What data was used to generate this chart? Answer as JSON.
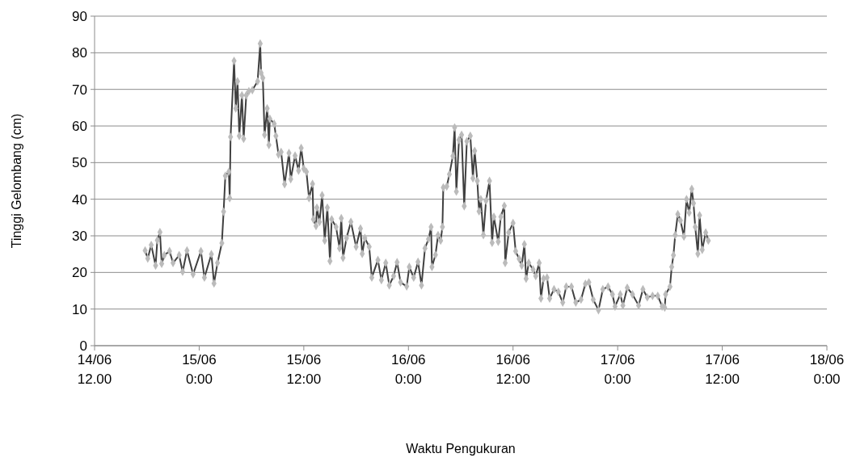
{
  "chart_data": {
    "type": "line",
    "xlabel": "Waktu Pengukuran",
    "ylabel": "Tinggi Gelombang (cm)",
    "grid": "y",
    "marker": "diamond",
    "line_style": "solid",
    "xlim": [
      "--06-14T12:00",
      "--06-18T00:00"
    ],
    "xticks": [
      {
        "value": "--06-14T12:00",
        "label": "14/06\n12.00"
      },
      {
        "value": "--06-15T00:00",
        "label": "15/06\n0:00"
      },
      {
        "value": "--06-15T12:00",
        "label": "15/06\n12:00"
      },
      {
        "value": "--06-16T00:00",
        "label": "16/06\n0:00"
      },
      {
        "value": "--06-16T12:00",
        "label": "16/06\n12:00"
      },
      {
        "value": "--06-17T00:00",
        "label": "17/06\n0:00"
      },
      {
        "value": "--06-17T12:00",
        "label": "17/06\n12:00"
      },
      {
        "value": "--06-18T00:00",
        "label": "18/06\n0:00"
      }
    ],
    "ylim": [
      0,
      90
    ],
    "yticks": [
      0,
      10,
      20,
      30,
      40,
      50,
      60,
      70,
      80,
      90
    ],
    "series": [
      {
        "color": "#404040",
        "x": [
          "--06-14T17:48",
          "--06-14T18:06",
          "--06-14T18:30",
          "--06-14T19:00",
          "--06-14T19:12",
          "--06-14T19:30",
          "--06-14T19:42",
          "--06-14T20:00",
          "--06-14T20:36",
          "--06-14T21:00",
          "--06-14T21:42",
          "--06-14T22:06",
          "--06-14T22:36",
          "--06-14T23:18",
          "--06-15T00:12",
          "--06-15T00:36",
          "--06-15T01:24",
          "--06-15T01:42",
          "--06-15T02:06",
          "--06-15T02:36",
          "--06-15T02:48",
          "--06-15T03:00",
          "--06-15T03:24",
          "--06-15T03:30",
          "--06-15T03:36",
          "--06-15T04:00",
          "--06-15T04:12",
          "--06-15T04:24",
          "--06-15T04:36",
          "--06-15T04:54",
          "--06-15T05:06",
          "--06-15T05:24",
          "--06-15T05:42",
          "--06-15T06:06",
          "--06-15T06:42",
          "--06-15T07:00",
          "--06-15T07:06",
          "--06-15T07:18",
          "--06-15T07:30",
          "--06-15T07:48",
          "--06-15T08:00",
          "--06-15T08:06",
          "--06-15T08:36",
          "--06-15T08:48",
          "--06-15T09:06",
          "--06-15T09:24",
          "--06-15T09:48",
          "--06-15T10:18",
          "--06-15T10:30",
          "--06-15T11:00",
          "--06-15T11:24",
          "--06-15T11:42",
          "--06-15T12:00",
          "--06-15T12:18",
          "--06-15T12:36",
          "--06-15T13:00",
          "--06-15T13:06",
          "--06-15T13:24",
          "--06-15T13:30",
          "--06-15T13:48",
          "--06-15T14:06",
          "--06-15T14:24",
          "--06-15T14:42",
          "--06-15T15:00",
          "--06-15T15:12",
          "--06-15T15:42",
          "--06-15T16:06",
          "--06-15T16:18",
          "--06-15T16:30",
          "--06-15T16:54",
          "--06-15T17:24",
          "--06-15T18:00",
          "--06-15T18:30",
          "--06-15T18:42",
          "--06-15T19:00",
          "--06-15T19:30",
          "--06-15T19:48",
          "--06-15T20:30",
          "--06-15T20:54",
          "--06-15T21:24",
          "--06-15T21:48",
          "--06-15T22:18",
          "--06-15T22:42",
          "--06-15T23:06",
          "--06-15T23:48",
          "--06-16T00:06",
          "--06-16T00:36",
          "--06-16T01:06",
          "--06-16T01:30",
          "--06-16T01:54",
          "--06-16T02:18",
          "--06-16T02:36",
          "--06-16T02:42",
          "--06-16T03:06",
          "--06-16T03:24",
          "--06-16T03:42",
          "--06-16T03:54",
          "--06-16T04:00",
          "--06-16T04:24",
          "--06-16T04:42",
          "--06-16T05:06",
          "--06-16T05:18",
          "--06-16T05:30",
          "--06-16T05:48",
          "--06-16T06:06",
          "--06-16T06:24",
          "--06-16T06:42",
          "--06-16T07:06",
          "--06-16T07:24",
          "--06-16T07:36",
          "--06-16T07:54",
          "--06-16T08:06",
          "--06-16T08:18",
          "--06-16T08:36",
          "--06-16T08:54",
          "--06-16T09:18",
          "--06-16T09:36",
          "--06-16T09:48",
          "--06-16T10:18",
          "--06-16T10:36",
          "--06-16T11:00",
          "--06-16T11:06",
          "--06-16T11:30",
          "--06-16T12:00",
          "--06-16T12:18",
          "--06-16T12:42",
          "--06-16T13:00",
          "--06-16T13:18",
          "--06-16T13:30",
          "--06-16T13:48",
          "--06-16T14:18",
          "--06-16T14:36",
          "--06-16T15:00",
          "--06-16T15:12",
          "--06-16T15:30",
          "--06-16T15:54",
          "--06-16T16:12",
          "--06-16T16:42",
          "--06-16T17:12",
          "--06-16T17:42",
          "--06-16T18:06",
          "--06-16T18:42",
          "--06-16T19:12",
          "--06-16T19:48",
          "--06-16T20:18",
          "--06-16T20:42",
          "--06-16T21:12",
          "--06-16T21:48",
          "--06-16T22:18",
          "--06-16T22:54",
          "--06-16T23:24",
          "--06-16T23:42",
          "--06-17T00:18",
          "--06-17T00:36",
          "--06-17T01:06",
          "--06-17T01:42",
          "--06-17T02:24",
          "--06-17T02:54",
          "--06-17T03:24",
          "--06-17T04:00",
          "--06-17T04:36",
          "--06-17T05:06",
          "--06-17T05:24",
          "--06-17T05:30",
          "--06-17T06:00",
          "--06-17T06:12",
          "--06-17T06:24",
          "--06-17T06:36",
          "--06-17T06:54",
          "--06-17T07:12",
          "--06-17T07:36",
          "--06-17T07:54",
          "--06-17T08:12",
          "--06-17T08:30",
          "--06-17T08:42",
          "--06-17T08:54",
          "--06-17T09:12",
          "--06-17T09:24",
          "--06-17T09:42",
          "--06-17T10:06",
          "--06-17T10:24"
        ],
        "values": [
          26.0,
          23.8,
          27.5,
          21.9,
          28.8,
          31.0,
          22.4,
          24.7,
          25.8,
          22.6,
          24.7,
          20.2,
          26.0,
          19.5,
          25.8,
          18.6,
          25.0,
          17.0,
          22.6,
          28.0,
          36.6,
          46.4,
          47.5,
          40.3,
          57.0,
          77.8,
          64.8,
          72.2,
          57.3,
          68.4,
          56.5,
          68.4,
          69.5,
          69.8,
          72.2,
          82.5,
          74.5,
          73.1,
          57.6,
          64.8,
          54.8,
          62.0,
          60.6,
          57.3,
          52.2,
          52.9,
          44.1,
          52.6,
          45.5,
          51.9,
          47.8,
          54.0,
          48.3,
          47.5,
          40.3,
          44.2,
          34.5,
          32.7,
          37.7,
          33.8,
          41.1,
          28.7,
          37.7,
          23.1,
          34.5,
          32.4,
          26.6,
          34.8,
          24.0,
          29.4,
          33.8,
          27.0,
          32.0,
          25.1,
          29.4,
          27.0,
          18.6,
          23.4,
          17.9,
          22.6,
          16.5,
          19.0,
          22.8,
          17.3,
          16.2,
          21.5,
          18.6,
          22.9,
          16.5,
          26.6,
          29.1,
          32.4,
          21.5,
          24.8,
          30.2,
          28.7,
          32.4,
          43.2,
          43.5,
          46.8,
          51.8,
          59.6,
          42.1,
          56.2,
          57.6,
          38.1,
          55.8,
          57.3,
          45.7,
          53.2,
          45.0,
          36.7,
          40.0,
          30.2,
          39.6,
          45.0,
          28.1,
          35.2,
          28.4,
          35.2,
          38.2,
          22.6,
          30.9,
          33.5,
          25.8,
          23.7,
          21.9,
          27.7,
          18.3,
          22.6,
          20.8,
          19.0,
          22.6,
          12.9,
          18.3,
          18.6,
          12.9,
          15.4,
          14.7,
          11.8,
          16.1,
          16.1,
          11.8,
          12.6,
          16.9,
          17.3,
          12.6,
          9.7,
          15.4,
          16.1,
          14.0,
          10.7,
          14.0,
          11.0,
          15.8,
          14.0,
          11.0,
          15.4,
          13.2,
          13.6,
          13.6,
          10.7,
          10.4,
          14.0,
          16.1,
          21.5,
          24.7,
          30.2,
          35.9,
          34.2,
          29.8,
          40.0,
          36.3,
          42.8,
          38.9,
          32.4,
          25.1,
          35.6,
          26.2,
          30.9,
          28.7
        ]
      }
    ]
  }
}
